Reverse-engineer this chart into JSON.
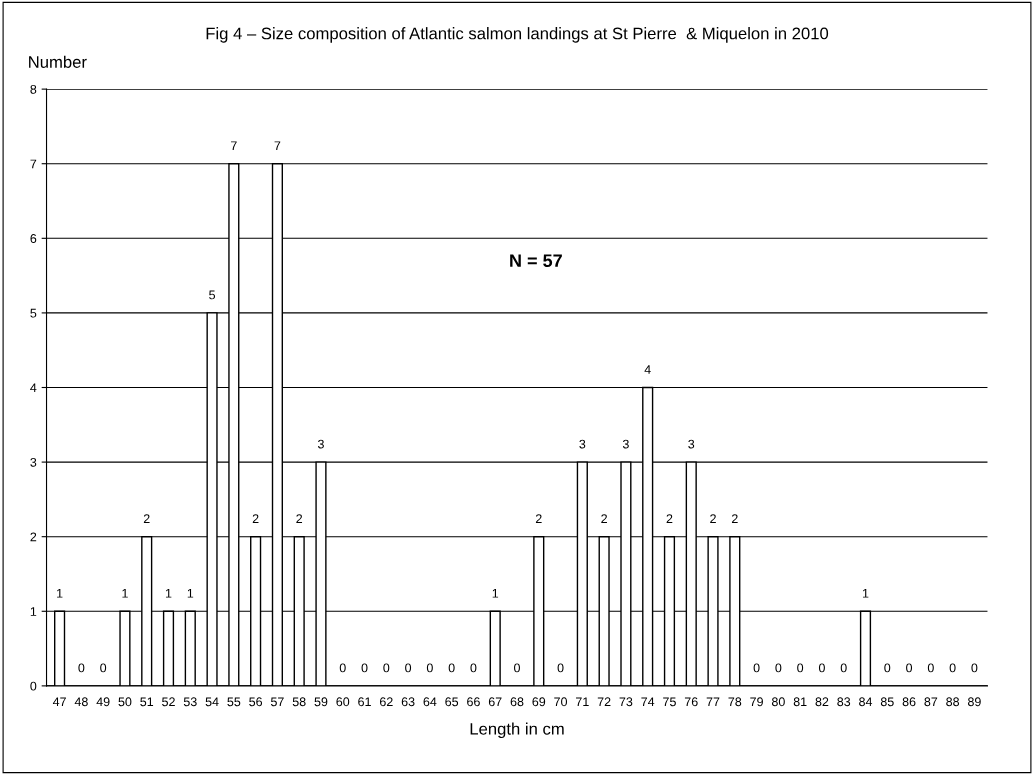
{
  "chart_data": {
    "type": "bar",
    "title": "Fig 4 – Size composition of Atlantic salmon landings at St Pierre  & Miquelon in 2010",
    "xlabel": "Length in cm",
    "ylabel": "Number",
    "categories": [
      "47",
      "48",
      "49",
      "50",
      "51",
      "52",
      "53",
      "54",
      "55",
      "56",
      "57",
      "58",
      "59",
      "60",
      "61",
      "62",
      "63",
      "64",
      "65",
      "66",
      "67",
      "68",
      "69",
      "70",
      "71",
      "72",
      "73",
      "74",
      "75",
      "76",
      "77",
      "78",
      "79",
      "80",
      "81",
      "82",
      "83",
      "84",
      "85",
      "86",
      "87",
      "88",
      "89"
    ],
    "values": [
      1,
      0,
      0,
      1,
      2,
      1,
      1,
      5,
      7,
      2,
      7,
      2,
      3,
      0,
      0,
      0,
      0,
      0,
      0,
      0,
      1,
      0,
      2,
      0,
      3,
      2,
      3,
      4,
      2,
      3,
      2,
      2,
      0,
      0,
      0,
      0,
      0,
      1,
      0,
      0,
      0,
      0,
      0
    ],
    "color": "#ffffff",
    "ylim": [
      0,
      8
    ],
    "yticks": [
      0,
      1,
      2,
      3,
      4,
      5,
      6,
      7,
      8
    ],
    "grid": "y",
    "data_labels": true,
    "annotations": [
      "N = 57"
    ]
  }
}
